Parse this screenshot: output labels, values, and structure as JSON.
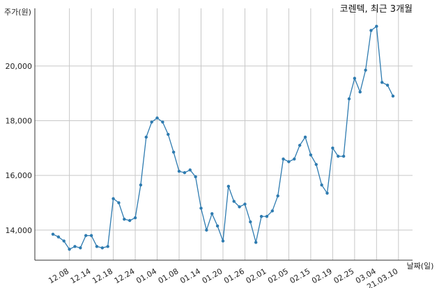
{
  "chart_data": {
    "type": "line",
    "title": "코렌텍, 최근 3개월",
    "ylabel": "주가(원)",
    "xlabel": "날짜(일)",
    "ylim": [
      12900,
      21650
    ],
    "yticks": [
      14000,
      16000,
      18000,
      20000
    ],
    "ytick_labels": [
      "14,000",
      "16,000",
      "18,000",
      "20,000"
    ],
    "grid": true,
    "line_color": "#2e7bb0",
    "xtick_labels": [
      "12.08",
      "12.14",
      "12.18",
      "12.24",
      "01.04",
      "01.08",
      "01.14",
      "01.20",
      "01.26",
      "02.01",
      "02.05",
      "02.15",
      "02.19",
      "02.25",
      "03.04",
      "21.03.10"
    ],
    "xtick_index": [
      3,
      7,
      11,
      15,
      19,
      23,
      27,
      31,
      35,
      39,
      43,
      47,
      51,
      55,
      59,
      63
    ],
    "series": [
      {
        "values": [
          13850,
          13750,
          13600,
          13300,
          13400,
          13350,
          13800,
          13800,
          13400,
          13350,
          13400,
          15150,
          15000,
          14400,
          14350,
          14450,
          15650,
          17400,
          17950,
          18100,
          17950,
          17500,
          16850,
          16150,
          16100,
          16200,
          15950,
          14800,
          14000,
          14600,
          14150,
          13600,
          15600,
          15050,
          14850,
          14950,
          14300,
          13550,
          14500,
          14500,
          14700,
          15250,
          16600,
          16500,
          16600,
          17100,
          17400,
          16750,
          16400,
          15650,
          15350,
          17000,
          16700,
          16700,
          18800,
          19550,
          19050,
          19850,
          21300,
          21450,
          19400,
          19300,
          18900
        ]
      }
    ]
  }
}
